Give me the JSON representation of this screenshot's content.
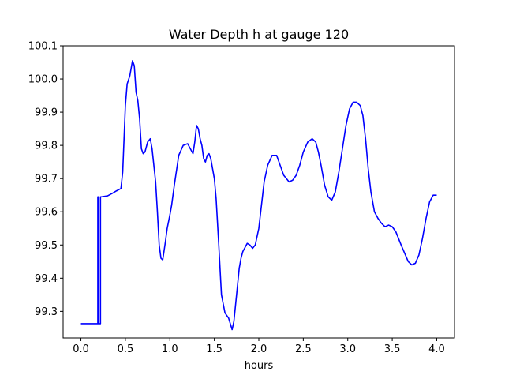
{
  "chart_data": {
    "type": "line",
    "title": "Water Depth h at gauge 120",
    "xlabel": "hours",
    "ylabel": "",
    "xlim": [
      -0.2,
      4.2
    ],
    "ylim": [
      99.22,
      100.1
    ],
    "grid": false,
    "x_ticks": [
      0.0,
      0.5,
      1.0,
      1.5,
      2.0,
      2.5,
      3.0,
      3.5,
      4.0
    ],
    "x_tick_labels": [
      "0.0",
      "0.5",
      "1.0",
      "1.5",
      "2.0",
      "2.5",
      "3.0",
      "3.5",
      "4.0"
    ],
    "y_ticks": [
      99.3,
      99.4,
      99.5,
      99.6,
      99.7,
      99.8,
      99.9,
      100.0,
      100.1
    ],
    "y_tick_labels": [
      "99.3",
      "99.4",
      "99.5",
      "99.6",
      "99.7",
      "99.8",
      "99.9",
      "100.0",
      "100.1"
    ],
    "series": [
      {
        "color": "#0000ff",
        "x": [
          0.0,
          0.19,
          0.19,
          0.2,
          0.2,
          0.22,
          0.22,
          0.23,
          0.23,
          0.3,
          0.35,
          0.4,
          0.45,
          0.47,
          0.5,
          0.52,
          0.55,
          0.58,
          0.6,
          0.62,
          0.64,
          0.66,
          0.68,
          0.7,
          0.72,
          0.75,
          0.78,
          0.8,
          0.82,
          0.84,
          0.86,
          0.88,
          0.9,
          0.92,
          0.95,
          0.97,
          1.0,
          1.02,
          1.05,
          1.1,
          1.15,
          1.2,
          1.23,
          1.26,
          1.28,
          1.3,
          1.32,
          1.34,
          1.36,
          1.38,
          1.4,
          1.42,
          1.44,
          1.46,
          1.48,
          1.5,
          1.52,
          1.55,
          1.58,
          1.62,
          1.66,
          1.7,
          1.72,
          1.75,
          1.78,
          1.8,
          1.82,
          1.84,
          1.87,
          1.9,
          1.93,
          1.96,
          2.0,
          2.03,
          2.06,
          2.1,
          2.15,
          2.2,
          2.24,
          2.28,
          2.31,
          2.34,
          2.38,
          2.42,
          2.46,
          2.5,
          2.55,
          2.6,
          2.64,
          2.67,
          2.7,
          2.74,
          2.78,
          2.82,
          2.86,
          2.9,
          2.94,
          2.98,
          3.02,
          3.06,
          3.1,
          3.14,
          3.17,
          3.2,
          3.23,
          3.26,
          3.3,
          3.34,
          3.38,
          3.42,
          3.46,
          3.5,
          3.54,
          3.57,
          3.6,
          3.64,
          3.68,
          3.72,
          3.76,
          3.8,
          3.84,
          3.88,
          3.92,
          3.96,
          4.0
        ],
        "y": [
          99.263,
          99.263,
          99.645,
          99.645,
          99.263,
          99.263,
          99.645,
          99.645,
          99.645,
          99.648,
          99.655,
          99.663,
          99.67,
          99.72,
          99.92,
          99.985,
          100.01,
          100.055,
          100.04,
          99.96,
          99.935,
          99.88,
          99.79,
          99.775,
          99.78,
          99.81,
          99.82,
          99.79,
          99.74,
          99.69,
          99.6,
          99.5,
          99.46,
          99.455,
          99.51,
          99.55,
          99.59,
          99.62,
          99.68,
          99.77,
          99.8,
          99.805,
          99.79,
          99.775,
          99.81,
          99.86,
          99.85,
          99.82,
          99.8,
          99.76,
          99.75,
          99.77,
          99.775,
          99.76,
          99.73,
          99.7,
          99.64,
          99.5,
          99.35,
          99.295,
          99.28,
          99.245,
          99.27,
          99.35,
          99.43,
          99.46,
          99.48,
          99.49,
          99.505,
          99.5,
          99.49,
          99.5,
          99.55,
          99.62,
          99.69,
          99.74,
          99.77,
          99.77,
          99.74,
          99.71,
          99.7,
          99.69,
          99.695,
          99.71,
          99.74,
          99.78,
          99.81,
          99.82,
          99.81,
          99.78,
          99.74,
          99.68,
          99.645,
          99.635,
          99.66,
          99.72,
          99.79,
          99.86,
          99.91,
          99.93,
          99.93,
          99.92,
          99.89,
          99.82,
          99.73,
          99.66,
          99.6,
          99.58,
          99.565,
          99.555,
          99.56,
          99.555,
          99.54,
          99.52,
          99.5,
          99.475,
          99.45,
          99.44,
          99.445,
          99.47,
          99.52,
          99.58,
          99.63,
          99.65,
          99.65
        ]
      }
    ]
  }
}
